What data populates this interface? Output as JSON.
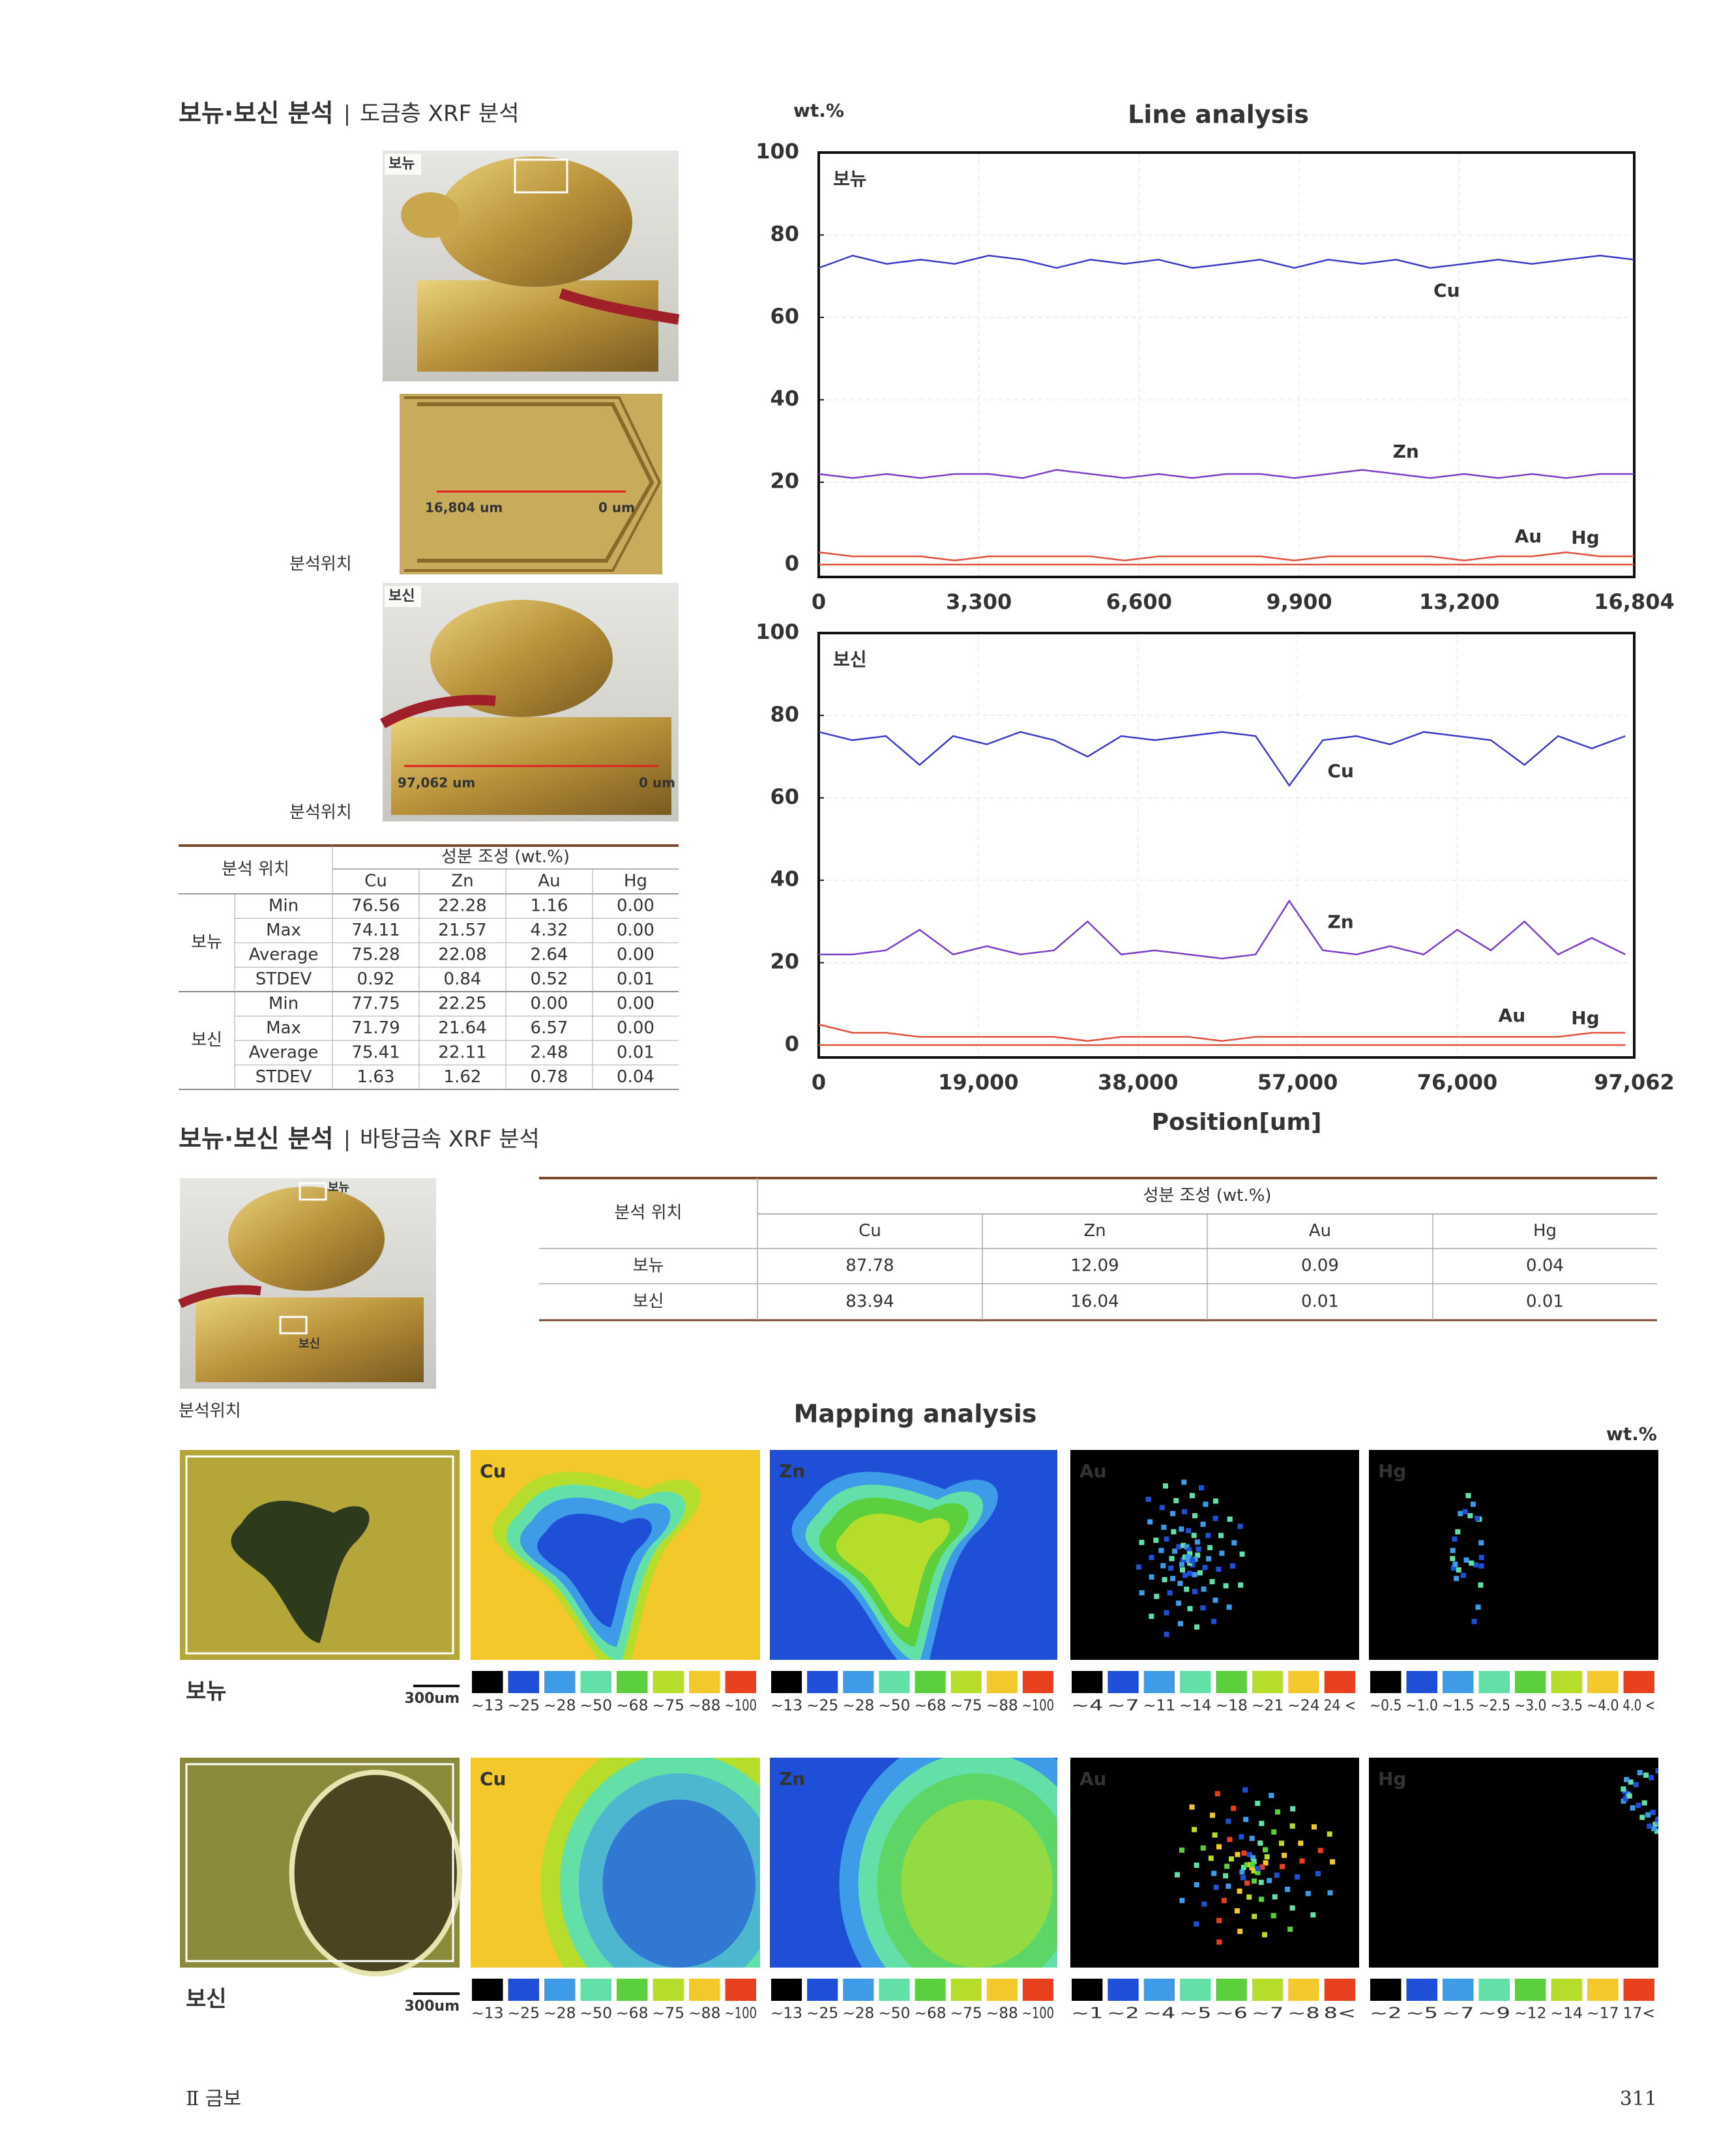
{
  "section1": {
    "title": "보뉴·보신 분석",
    "separator": "|",
    "subtitle": "도금층 XRF 분석"
  },
  "photos": {
    "top_label": "보뉴",
    "closeup_start": "16,804 um",
    "closeup_end": "0 um",
    "position_label_1": "분석위치",
    "bottom_label": "보신",
    "bottom_start": "97,062 um",
    "bottom_end": "0 um",
    "position_label_2": "분석위치"
  },
  "table1": {
    "header_location": "분석 위치",
    "header_composition": "성분 조성 (wt.%)",
    "columns": [
      "Cu",
      "Zn",
      "Au",
      "Hg"
    ],
    "groups": [
      {
        "name": "보뉴",
        "rows": [
          [
            "Min",
            "76.56",
            "22.28",
            "1.16",
            "0.00"
          ],
          [
            "Max",
            "74.11",
            "21.57",
            "4.32",
            "0.00"
          ],
          [
            "Average",
            "75.28",
            "22.08",
            "2.64",
            "0.00"
          ],
          [
            "STDEV",
            "0.92",
            "0.84",
            "0.52",
            "0.01"
          ]
        ]
      },
      {
        "name": "보신",
        "rows": [
          [
            "Min",
            "77.75",
            "22.25",
            "0.00",
            "0.00"
          ],
          [
            "Max",
            "71.79",
            "21.64",
            "6.57",
            "0.00"
          ],
          [
            "Average",
            "75.41",
            "22.11",
            "2.48",
            "0.01"
          ],
          [
            "STDEV",
            "1.63",
            "1.62",
            "0.78",
            "0.04"
          ]
        ]
      }
    ]
  },
  "line_analysis": {
    "title": "Line analysis",
    "y_unit": "wt.%",
    "x_label": "Position[um]",
    "grid": true,
    "charts": [
      {
        "type": "line",
        "label": "보뉴",
        "x": [
          0,
          700,
          1400,
          2100,
          2800,
          3500,
          4200,
          4900,
          5600,
          6300,
          7000,
          7700,
          8400,
          9100,
          9800,
          10500,
          11200,
          11900,
          12600,
          13300,
          14000,
          14700,
          15400,
          16100,
          16800
        ],
        "xlim": [
          0,
          16804
        ],
        "xticks": [
          0,
          {
            "value": 3300,
            "label": "3,300"
          },
          {
            "value": 6600,
            "label": "6,600"
          },
          {
            "value": 9900,
            "label": "9,900"
          },
          {
            "value": 13200,
            "label": "13,200"
          },
          {
            "value": 16804,
            "label": "16,804"
          }
        ],
        "ylim": [
          -3,
          100
        ],
        "yticks": [
          0,
          20,
          40,
          60,
          80,
          100
        ],
        "series": [
          {
            "name": "Cu",
            "color": "#3a3ac8",
            "values": [
              72,
              75,
              73,
              74,
              73,
              75,
              74,
              72,
              74,
              73,
              74,
              72,
              73,
              74,
              72,
              74,
              73,
              74,
              72,
              73,
              74,
              73,
              74,
              75,
              74
            ]
          },
          {
            "name": "Zn",
            "color": "#7a3ec8",
            "values": [
              22,
              21,
              22,
              21,
              22,
              22,
              21,
              23,
              22,
              21,
              22,
              21,
              22,
              22,
              21,
              22,
              23,
              22,
              21,
              22,
              21,
              22,
              21,
              22,
              22
            ]
          },
          {
            "name": "Au",
            "color": "#e0503a",
            "values": [
              3,
              2,
              2,
              2,
              1,
              2,
              2,
              2,
              2,
              1,
              2,
              2,
              2,
              2,
              1,
              2,
              2,
              2,
              2,
              1,
              2,
              2,
              3,
              2,
              2
            ]
          },
          {
            "name": "Hg",
            "color": "#e0503a",
            "values": [
              0,
              0,
              0,
              0,
              0,
              0,
              0,
              0,
              0,
              0,
              0,
              0,
              0,
              0,
              0,
              0,
              0,
              0,
              0,
              0,
              0,
              0,
              0,
              0,
              0
            ]
          }
        ]
      },
      {
        "type": "line",
        "label": "보신",
        "x": [
          0,
          4000,
          8000,
          12000,
          16000,
          20000,
          24000,
          28000,
          32000,
          36000,
          40000,
          44000,
          48000,
          52000,
          56000,
          60000,
          64000,
          68000,
          72000,
          76000,
          80000,
          84000,
          88000,
          92000,
          96000
        ],
        "xlim": [
          0,
          97062
        ],
        "xticks": [
          0,
          {
            "value": 19000,
            "label": "19,000"
          },
          {
            "value": 38000,
            "label": "38,000"
          },
          {
            "value": 57000,
            "label": "57,000"
          },
          {
            "value": 76000,
            "label": "76,000"
          },
          {
            "value": 97062,
            "label": "97,062"
          }
        ],
        "ylim": [
          -3,
          100
        ],
        "yticks": [
          0,
          20,
          40,
          60,
          80,
          100
        ],
        "series": [
          {
            "name": "Cu",
            "color": "#3a3ac8",
            "values": [
              76,
              74,
              75,
              68,
              75,
              73,
              76,
              74,
              70,
              75,
              74,
              75,
              76,
              75,
              63,
              74,
              75,
              73,
              76,
              75,
              74,
              68,
              75,
              72,
              75
            ]
          },
          {
            "name": "Zn",
            "color": "#7a3ec8",
            "values": [
              22,
              22,
              23,
              28,
              22,
              24,
              22,
              23,
              30,
              22,
              23,
              22,
              21,
              22,
              35,
              23,
              22,
              24,
              22,
              28,
              23,
              30,
              22,
              26,
              22
            ]
          },
          {
            "name": "Au",
            "color": "#e0503a",
            "values": [
              5,
              3,
              3,
              2,
              2,
              2,
              2,
              2,
              1,
              2,
              2,
              2,
              1,
              2,
              2,
              2,
              2,
              2,
              2,
              2,
              2,
              2,
              2,
              3,
              3
            ]
          },
          {
            "name": "Hg",
            "color": "#e0503a",
            "values": [
              0,
              0,
              0,
              0,
              0,
              0,
              0,
              0,
              0,
              0,
              0,
              0,
              0,
              0,
              0,
              0,
              0,
              0,
              0,
              0,
              0,
              0,
              0,
              0,
              0
            ]
          }
        ]
      }
    ]
  },
  "section2": {
    "title": "보뉴·보신 분석",
    "separator": "|",
    "subtitle": "바탕금속 XRF 분석",
    "photo_labels": [
      "보뉴",
      "보신"
    ],
    "position_label": "분석위치"
  },
  "table2": {
    "header_location": "분석 위치",
    "header_composition": "성분 조성 (wt.%)",
    "columns": [
      "Cu",
      "Zn",
      "Au",
      "Hg"
    ],
    "rows": [
      [
        "보뉴",
        "87.78",
        "12.09",
        "0.09",
        "0.04"
      ],
      [
        "보신",
        "83.94",
        "16.04",
        "0.01",
        "0.01"
      ]
    ]
  },
  "mapping": {
    "title": "Mapping analysis",
    "unit": "wt.%",
    "rows": [
      {
        "label": "보뉴",
        "scale": "300um",
        "panels": [
          {
            "element": "Cu",
            "legend": [
              "~13",
              "~25",
              "~28",
              "~50",
              "~68",
              "~75",
              "~88",
              "~100"
            ]
          },
          {
            "element": "Zn",
            "legend": [
              "~13",
              "~25",
              "~28",
              "~50",
              "~68",
              "~75",
              "~88",
              "~100"
            ]
          },
          {
            "element": "Au",
            "legend": [
              "~4",
              "~7",
              "~11",
              "~14",
              "~18",
              "~21",
              "~24",
              "24 <"
            ]
          },
          {
            "element": "Hg",
            "legend": [
              "~0.5",
              "~1.0",
              "~1.5",
              "~2.5",
              "~3.0",
              "~3.5",
              "~4.0",
              "4.0 <"
            ]
          }
        ]
      },
      {
        "label": "보신",
        "scale": "300um",
        "panels": [
          {
            "element": "Cu",
            "legend": [
              "~13",
              "~25",
              "~28",
              "~50",
              "~68",
              "~75",
              "~88",
              "~100"
            ]
          },
          {
            "element": "Zn",
            "legend": [
              "~13",
              "~25",
              "~28",
              "~50",
              "~68",
              "~75",
              "~88",
              "~100"
            ]
          },
          {
            "element": "Au",
            "legend": [
              "~1",
              "~2",
              "~4",
              "~5",
              "~6",
              "~7",
              "~8",
              "8<"
            ]
          },
          {
            "element": "Hg",
            "legend": [
              "~2",
              "~5",
              "~7",
              "~9",
              "~12",
              "~14",
              "~17",
              "17<"
            ]
          }
        ]
      }
    ]
  },
  "footer": {
    "section": "Ⅱ 금보",
    "page": "311"
  }
}
